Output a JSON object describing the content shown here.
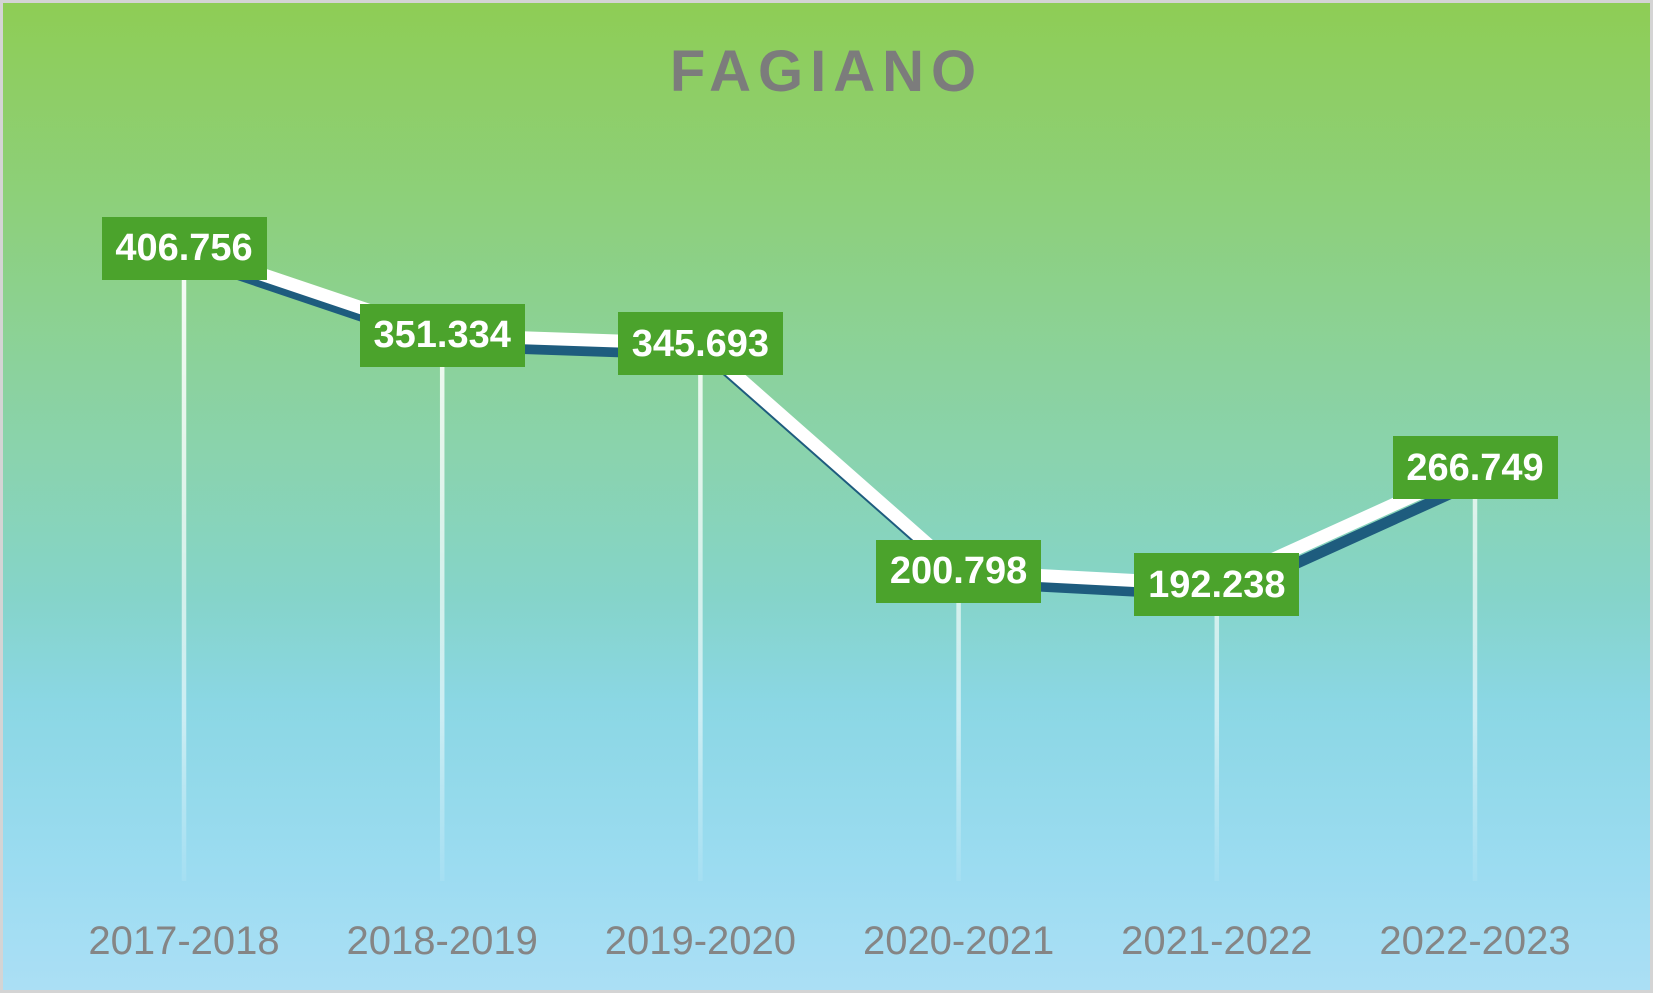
{
  "chart_data": {
    "type": "line",
    "title": "FAGIANO",
    "categories": [
      "2017-2018",
      "2018-2019",
      "2019-2020",
      "2020-2021",
      "2021-2022",
      "2022-2023"
    ],
    "series": [
      {
        "name": "FAGIANO",
        "values": [
          406756,
          351334,
          345693,
          200798,
          192238,
          266749
        ]
      }
    ],
    "point_labels": [
      "406.756",
      "351.334",
      "345.693",
      "200.798",
      "192.238",
      "266.749"
    ],
    "xlabel": "",
    "ylabel": "",
    "legend": "none",
    "grid": "off",
    "y_axis_shown": false,
    "style_notes": "white line with dark offset shadow, green value boxes on points, white drop lines to baseline"
  },
  "colors": {
    "label_box_bg": "#4ba32c",
    "label_text": "#ffffff",
    "line_highlight": "#ffffff",
    "line_shadow": "#1e5c7e",
    "drop_line": "#ffffff",
    "title_text": "#7c7c7c",
    "axis_label_text": "#858585",
    "bg_gradient_top": "#8ecd55",
    "bg_gradient_mid": "#85d4c9",
    "bg_gradient_bottom": "#abdff5",
    "frame_border": "#d4d4d4"
  }
}
